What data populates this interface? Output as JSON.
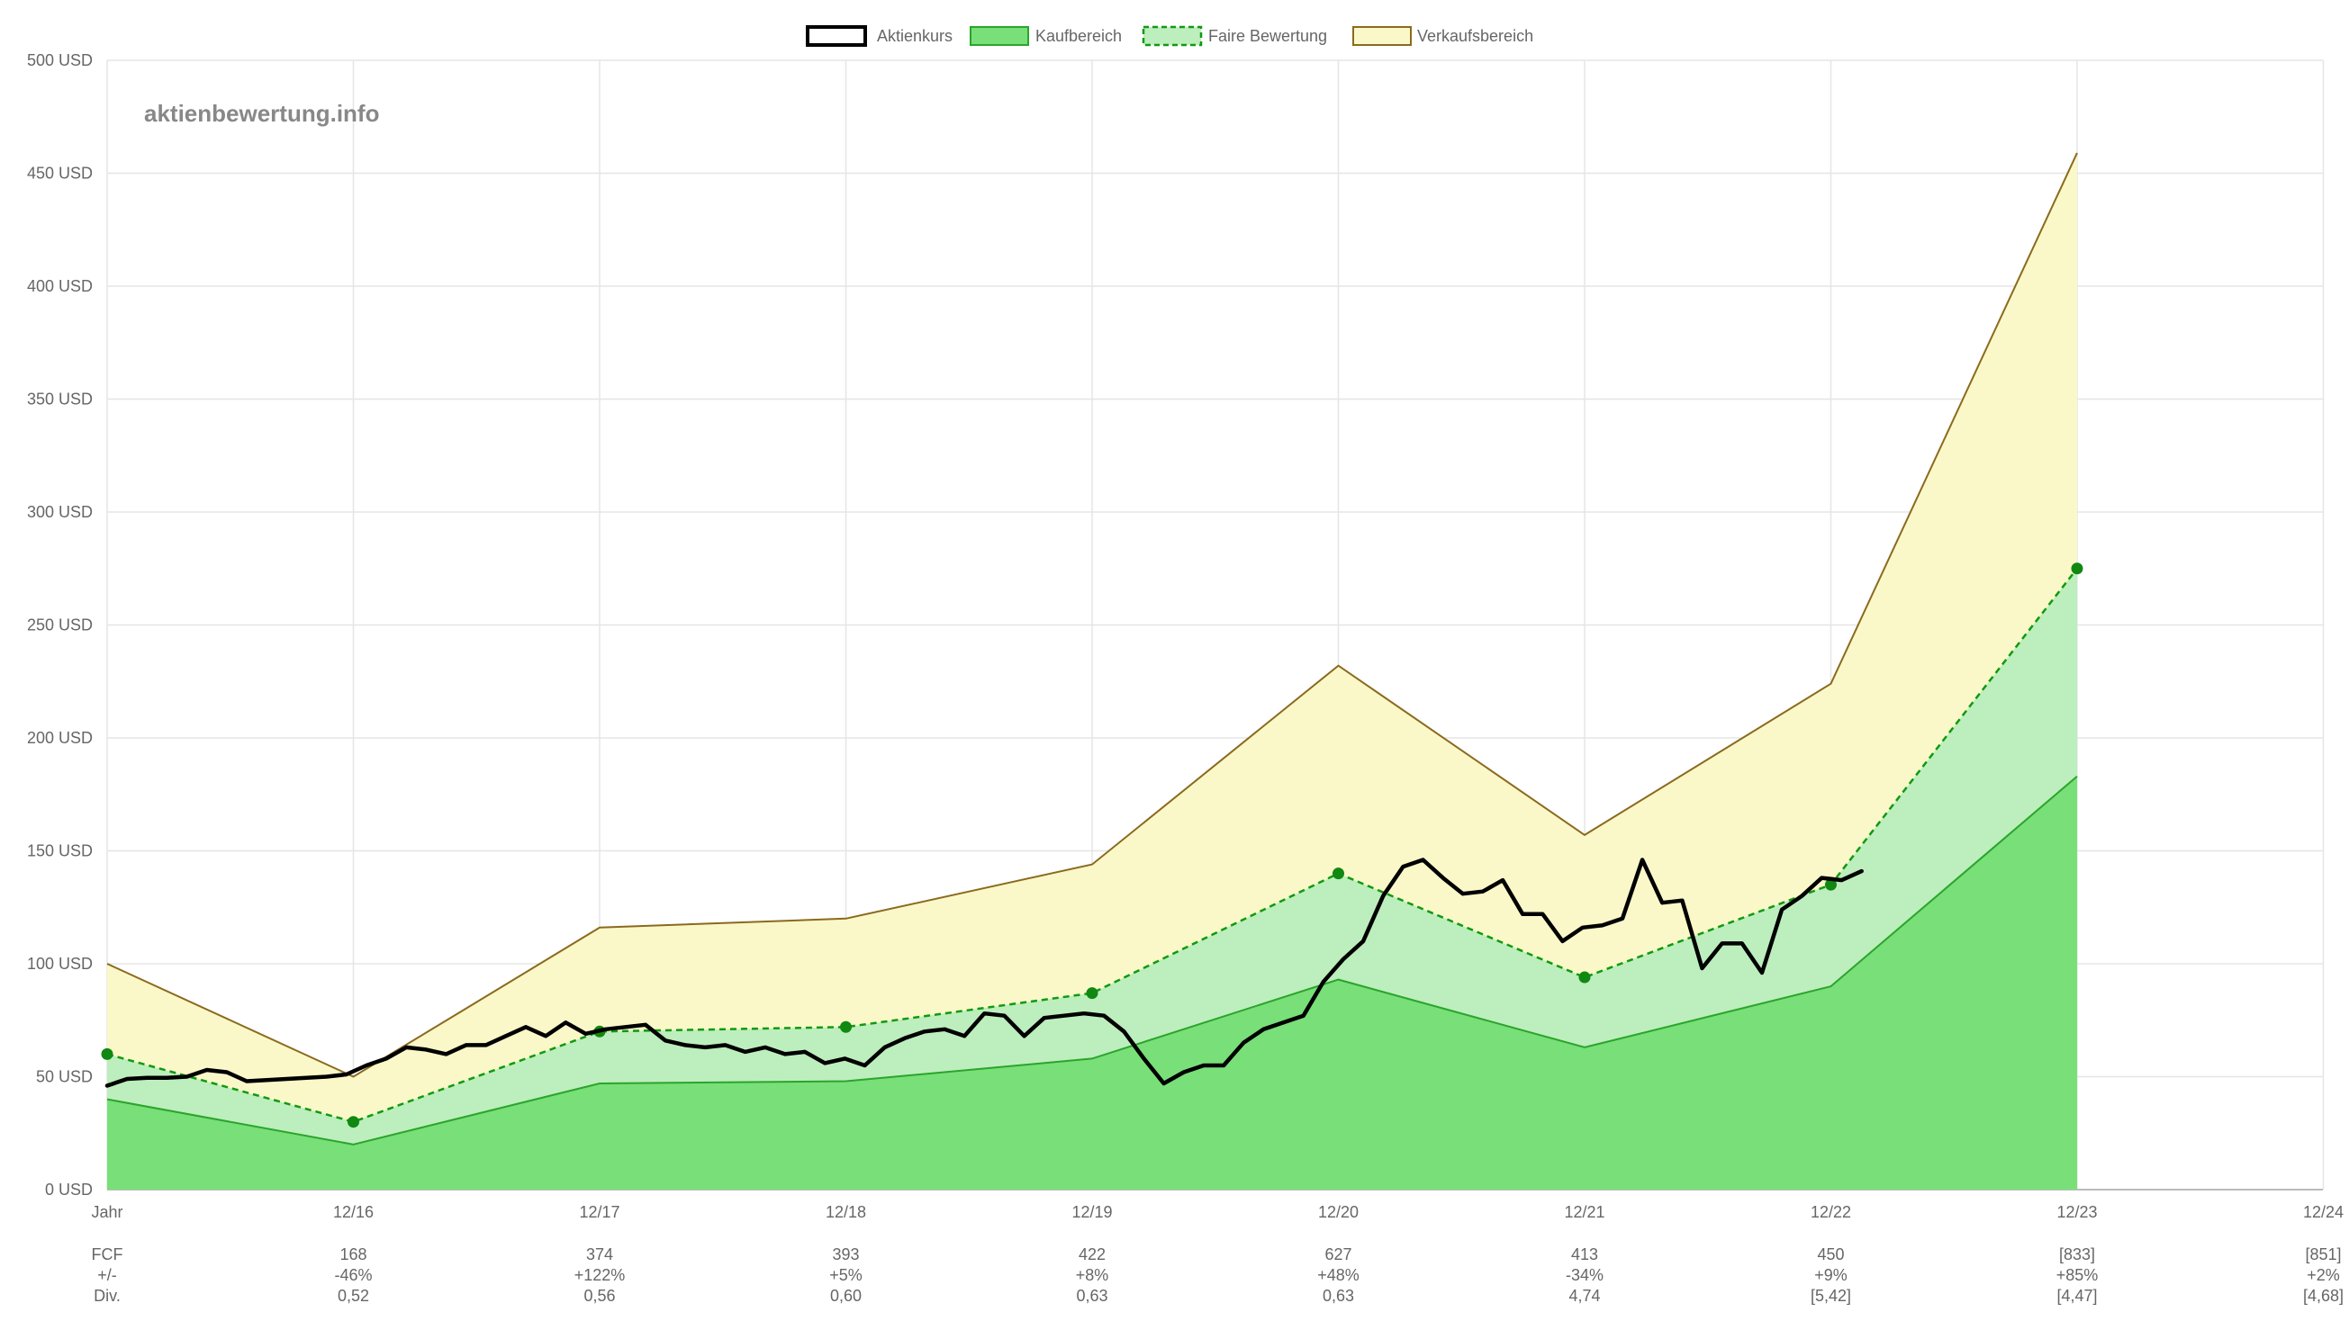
{
  "watermark": "aktienbewertung.info",
  "legend": [
    {
      "label": "Aktienkurs",
      "style": "price"
    },
    {
      "label": "Kaufbereich",
      "style": "buy"
    },
    {
      "label": "Faire Bewertung",
      "style": "fair"
    },
    {
      "label": "Verkaufsbereich",
      "style": "sell"
    }
  ],
  "colors": {
    "price": "#000000",
    "buy_fill": "#79df79",
    "buy_line": "#2aa52a",
    "fair_fill": "#bdeebd",
    "fair_line": "#119911",
    "fair_point": "#118811",
    "sell_fill": "#faf8c8",
    "sell_line": "#8b6a1e",
    "grid": "#e5e5e5",
    "text": "#666666"
  },
  "chart_data": {
    "type": "line",
    "y_unit": "USD",
    "y_range": [
      0,
      500
    ],
    "y_ticks": [
      "0 USD",
      "50 USD",
      "100 USD",
      "150 USD",
      "200 USD",
      "250 USD",
      "300 USD",
      "350 USD",
      "400 USD",
      "450 USD",
      "500 USD"
    ],
    "x_start_label": "Jahr",
    "x_labels": [
      "12/16",
      "12/17",
      "12/18",
      "12/19",
      "12/20",
      "12/21",
      "12/22",
      "12/23",
      "12/24"
    ],
    "legend_position": "top",
    "grid": true,
    "valuation": {
      "x": [
        "start",
        "12/16",
        "12/17",
        "12/18",
        "12/19",
        "12/20",
        "12/21",
        "12/22",
        "12/23"
      ],
      "sell_upper": [
        100,
        50,
        116,
        120,
        144,
        232,
        157,
        224,
        459
      ],
      "fair": [
        60,
        30,
        70,
        72,
        87,
        140,
        94,
        135,
        275
      ],
      "buy_upper": [
        40,
        20,
        47,
        48,
        58,
        93,
        63,
        90,
        183
      ]
    },
    "price": {
      "name": "Aktienkurs",
      "x_range": [
        "start",
        "12/22 + 1.5 months"
      ],
      "values": [
        46,
        49,
        49.5,
        49.5,
        50,
        53,
        52,
        48,
        48.5,
        49,
        49.5,
        50,
        51,
        55,
        58,
        63,
        62,
        60,
        64,
        64,
        68,
        72,
        68,
        74,
        69,
        71,
        72,
        73,
        66,
        64,
        63,
        64,
        61,
        63,
        60,
        61,
        56,
        58,
        55,
        63,
        67,
        70,
        71,
        68,
        78,
        77,
        68,
        76,
        77,
        78,
        77,
        70,
        58,
        47,
        52,
        55,
        55,
        65,
        71,
        74,
        77,
        92,
        102,
        110,
        130,
        143,
        146,
        138,
        131,
        132,
        137,
        122,
        122,
        110,
        116,
        117,
        120,
        146,
        127,
        128,
        98,
        109,
        109,
        96,
        124,
        130,
        138,
        137,
        141
      ]
    },
    "table": {
      "rows": [
        {
          "label": "FCF",
          "values": [
            "168",
            "374",
            "393",
            "422",
            "627",
            "413",
            "450",
            "[833]",
            "[851]"
          ]
        },
        {
          "label": "+/-",
          "values": [
            "-46%",
            "+122%",
            "+5%",
            "+8%",
            "+48%",
            "-34%",
            "+9%",
            "+85%",
            "+2%"
          ]
        },
        {
          "label": "Div.",
          "values": [
            "0,52",
            "0,56",
            "0,60",
            "0,63",
            "0,63",
            "4,74",
            "[5,42]",
            "[4,47]",
            "[4,68]"
          ]
        }
      ]
    }
  }
}
